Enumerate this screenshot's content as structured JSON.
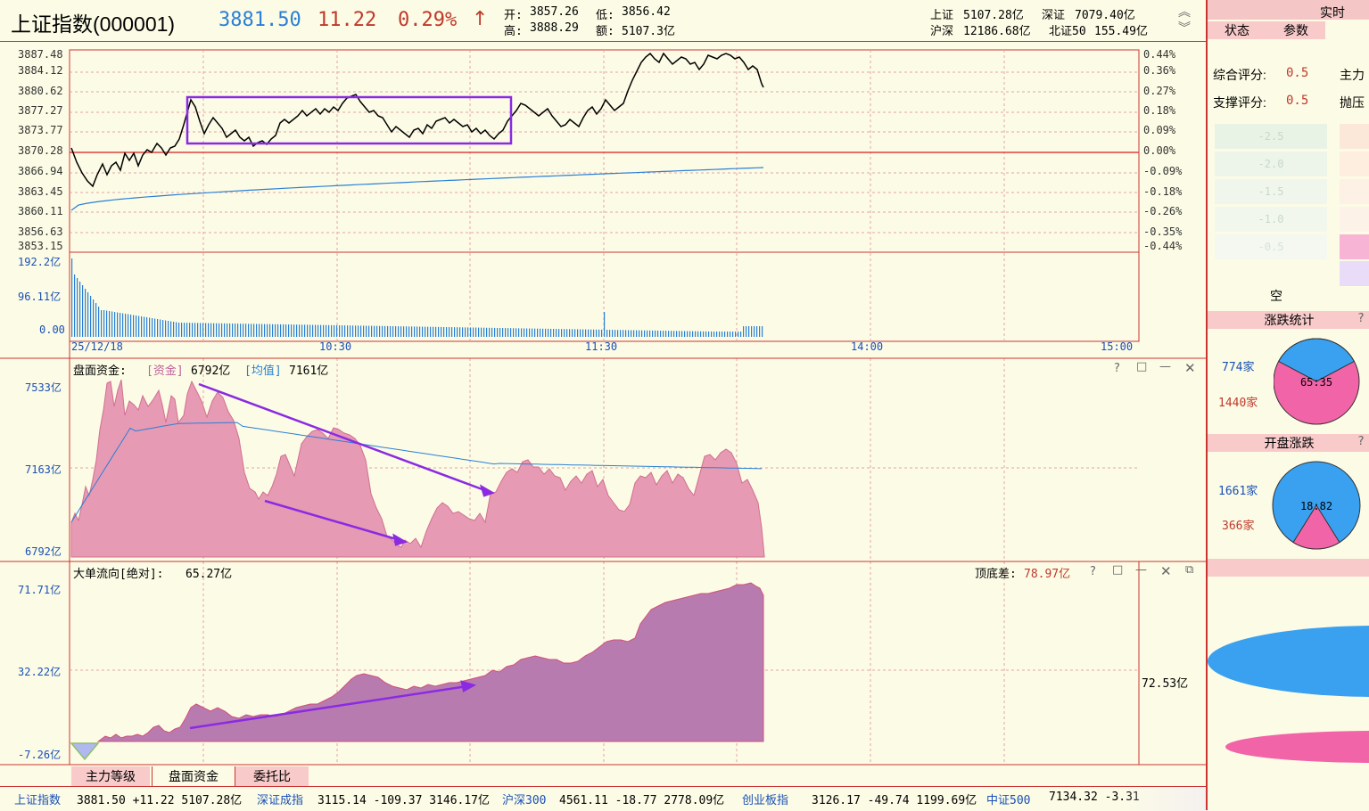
{
  "header": {
    "title": "上证指数(000001)",
    "price": "3881.50",
    "change": "11.22",
    "change_pct": "0.29%",
    "open_label": "开:",
    "open": "3857.26",
    "low_label": "低:",
    "low": "3856.42",
    "high_label": "高:",
    "high": "3888.29",
    "amount_label": "额:",
    "amount": "5107.3亿",
    "sh_label": "上证",
    "sh": "5107.28亿",
    "sz_label": "深证",
    "sz": "7079.40亿",
    "hs_label": "沪深",
    "hs": "12186.68亿",
    "bz_label": "北证50",
    "bz": "155.49亿"
  },
  "price_chart": {
    "y_left": [
      "3887.48",
      "3884.12",
      "3880.62",
      "3877.27",
      "3873.77",
      "3870.28",
      "3866.94",
      "3863.45",
      "3860.11",
      "3856.63",
      "3853.15"
    ],
    "y_right": [
      "0.44%",
      "0.36%",
      "0.27%",
      "0.18%",
      "0.09%",
      "0.00%",
      "-0.09%",
      "-0.18%",
      "-0.26%",
      "-0.35%",
      "-0.44%"
    ],
    "vol_labels": [
      "192.2亿",
      "96.11亿",
      "0.00"
    ],
    "x_labels": [
      "25/12/18",
      "10:30",
      "11:30",
      "14:00",
      "15:00"
    ]
  },
  "fund_panel": {
    "label": "盘面资金:",
    "fund_tag": "[资金]",
    "fund_value": "6792亿",
    "avg_tag": "[均值]",
    "avg_value": "7161亿",
    "y_labels": [
      "7533亿",
      "7163亿",
      "6792亿"
    ]
  },
  "big_panel": {
    "label": "大单流向[绝对]:",
    "value": "65.27亿",
    "diff_label": "顶底差:",
    "diff_value": "78.97亿",
    "y_labels": [
      "71.71亿",
      "32.22亿",
      "-7.26亿"
    ],
    "right_label": "72.53亿"
  },
  "tabs": [
    "主力等级",
    "盘面资金",
    "委托比"
  ],
  "right_panel": {
    "top_tab": "实时",
    "tab1": "状态",
    "tab2": "参数",
    "score_label": "综合评分:",
    "score": "0.5",
    "support_label": "支撑评分:",
    "support": "0.5",
    "main_label": "主力",
    "press_label": "抛压",
    "heat_labels": [
      "-2.5",
      "-2.0",
      "-1.5",
      "-1.0",
      "-0.5"
    ],
    "empty_label": "空",
    "stat_title": "涨跌统计",
    "up_count": "774家",
    "down_count": "1440家",
    "ratio": "65:35",
    "open_title": "开盘涨跌",
    "open_up": "1661家",
    "open_down": "366家",
    "open_ratio": "18:82"
  },
  "bottom_bar": [
    {
      "name": "上证指数",
      "text": "3881.50 +11.22 5107.28亿"
    },
    {
      "name": "深证成指",
      "text": "3115.14 -109.37 3146.17亿"
    },
    {
      "name": "沪深300",
      "text": "4561.11 -18.77 2778.09亿"
    },
    {
      "name": "创业板指",
      "text": "3126.17 -49.74 1199.69亿"
    },
    {
      "name": "中证500",
      "text": "7134.32 -3.31"
    }
  ],
  "colors": {
    "price_line": "#000000",
    "avg_line": "#2a7fd6",
    "fund_fill": "#e79ab4",
    "big_fill": "#b87bb0",
    "annotation": "#8a2be2",
    "pie_blue": "#3aa0f0",
    "pie_pink": "#f264a8"
  }
}
